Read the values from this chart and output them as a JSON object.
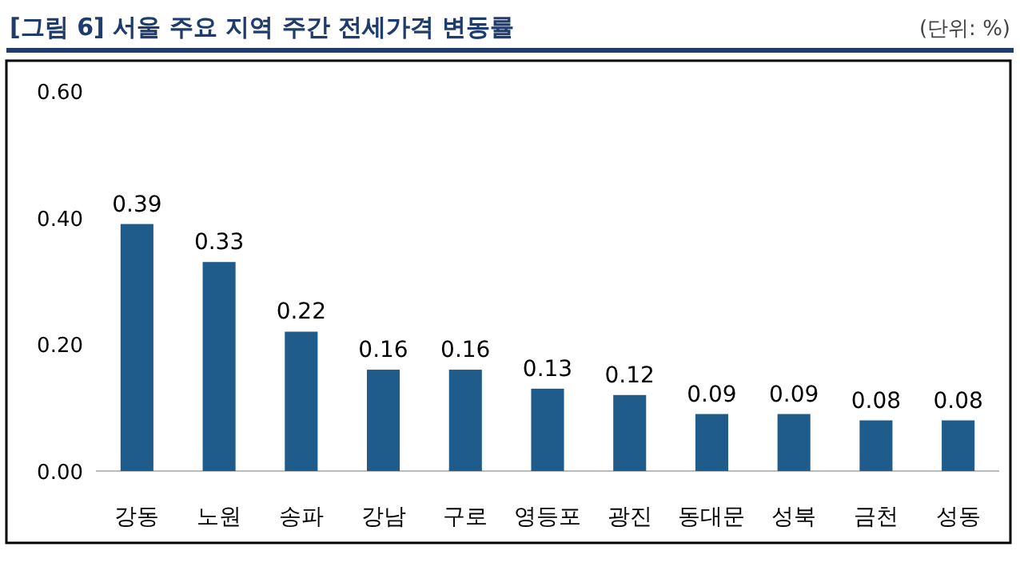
{
  "chart_data": {
    "type": "bar",
    "title": "[그림 6] 서울 주요 지역 주간 전세가격 변동률",
    "annotations": [
      "(단위: %)"
    ],
    "categories": [
      "강동",
      "노원",
      "송파",
      "강남",
      "구로",
      "영등포",
      "광진",
      "동대문",
      "성북",
      "금천",
      "성동"
    ],
    "values": [
      0.39,
      0.33,
      0.22,
      0.16,
      0.16,
      0.13,
      0.12,
      0.09,
      0.09,
      0.08,
      0.08
    ],
    "color": "#1f5c8b",
    "ylim": [
      0,
      0.6
    ],
    "yticks": [
      {
        "value": 0,
        "label": "0.00"
      },
      {
        "value": 0.2,
        "label": "0.20"
      },
      {
        "value": 0.4,
        "label": "0.40"
      },
      {
        "value": 0.6,
        "label": "0.60"
      }
    ],
    "data_labels": true
  }
}
